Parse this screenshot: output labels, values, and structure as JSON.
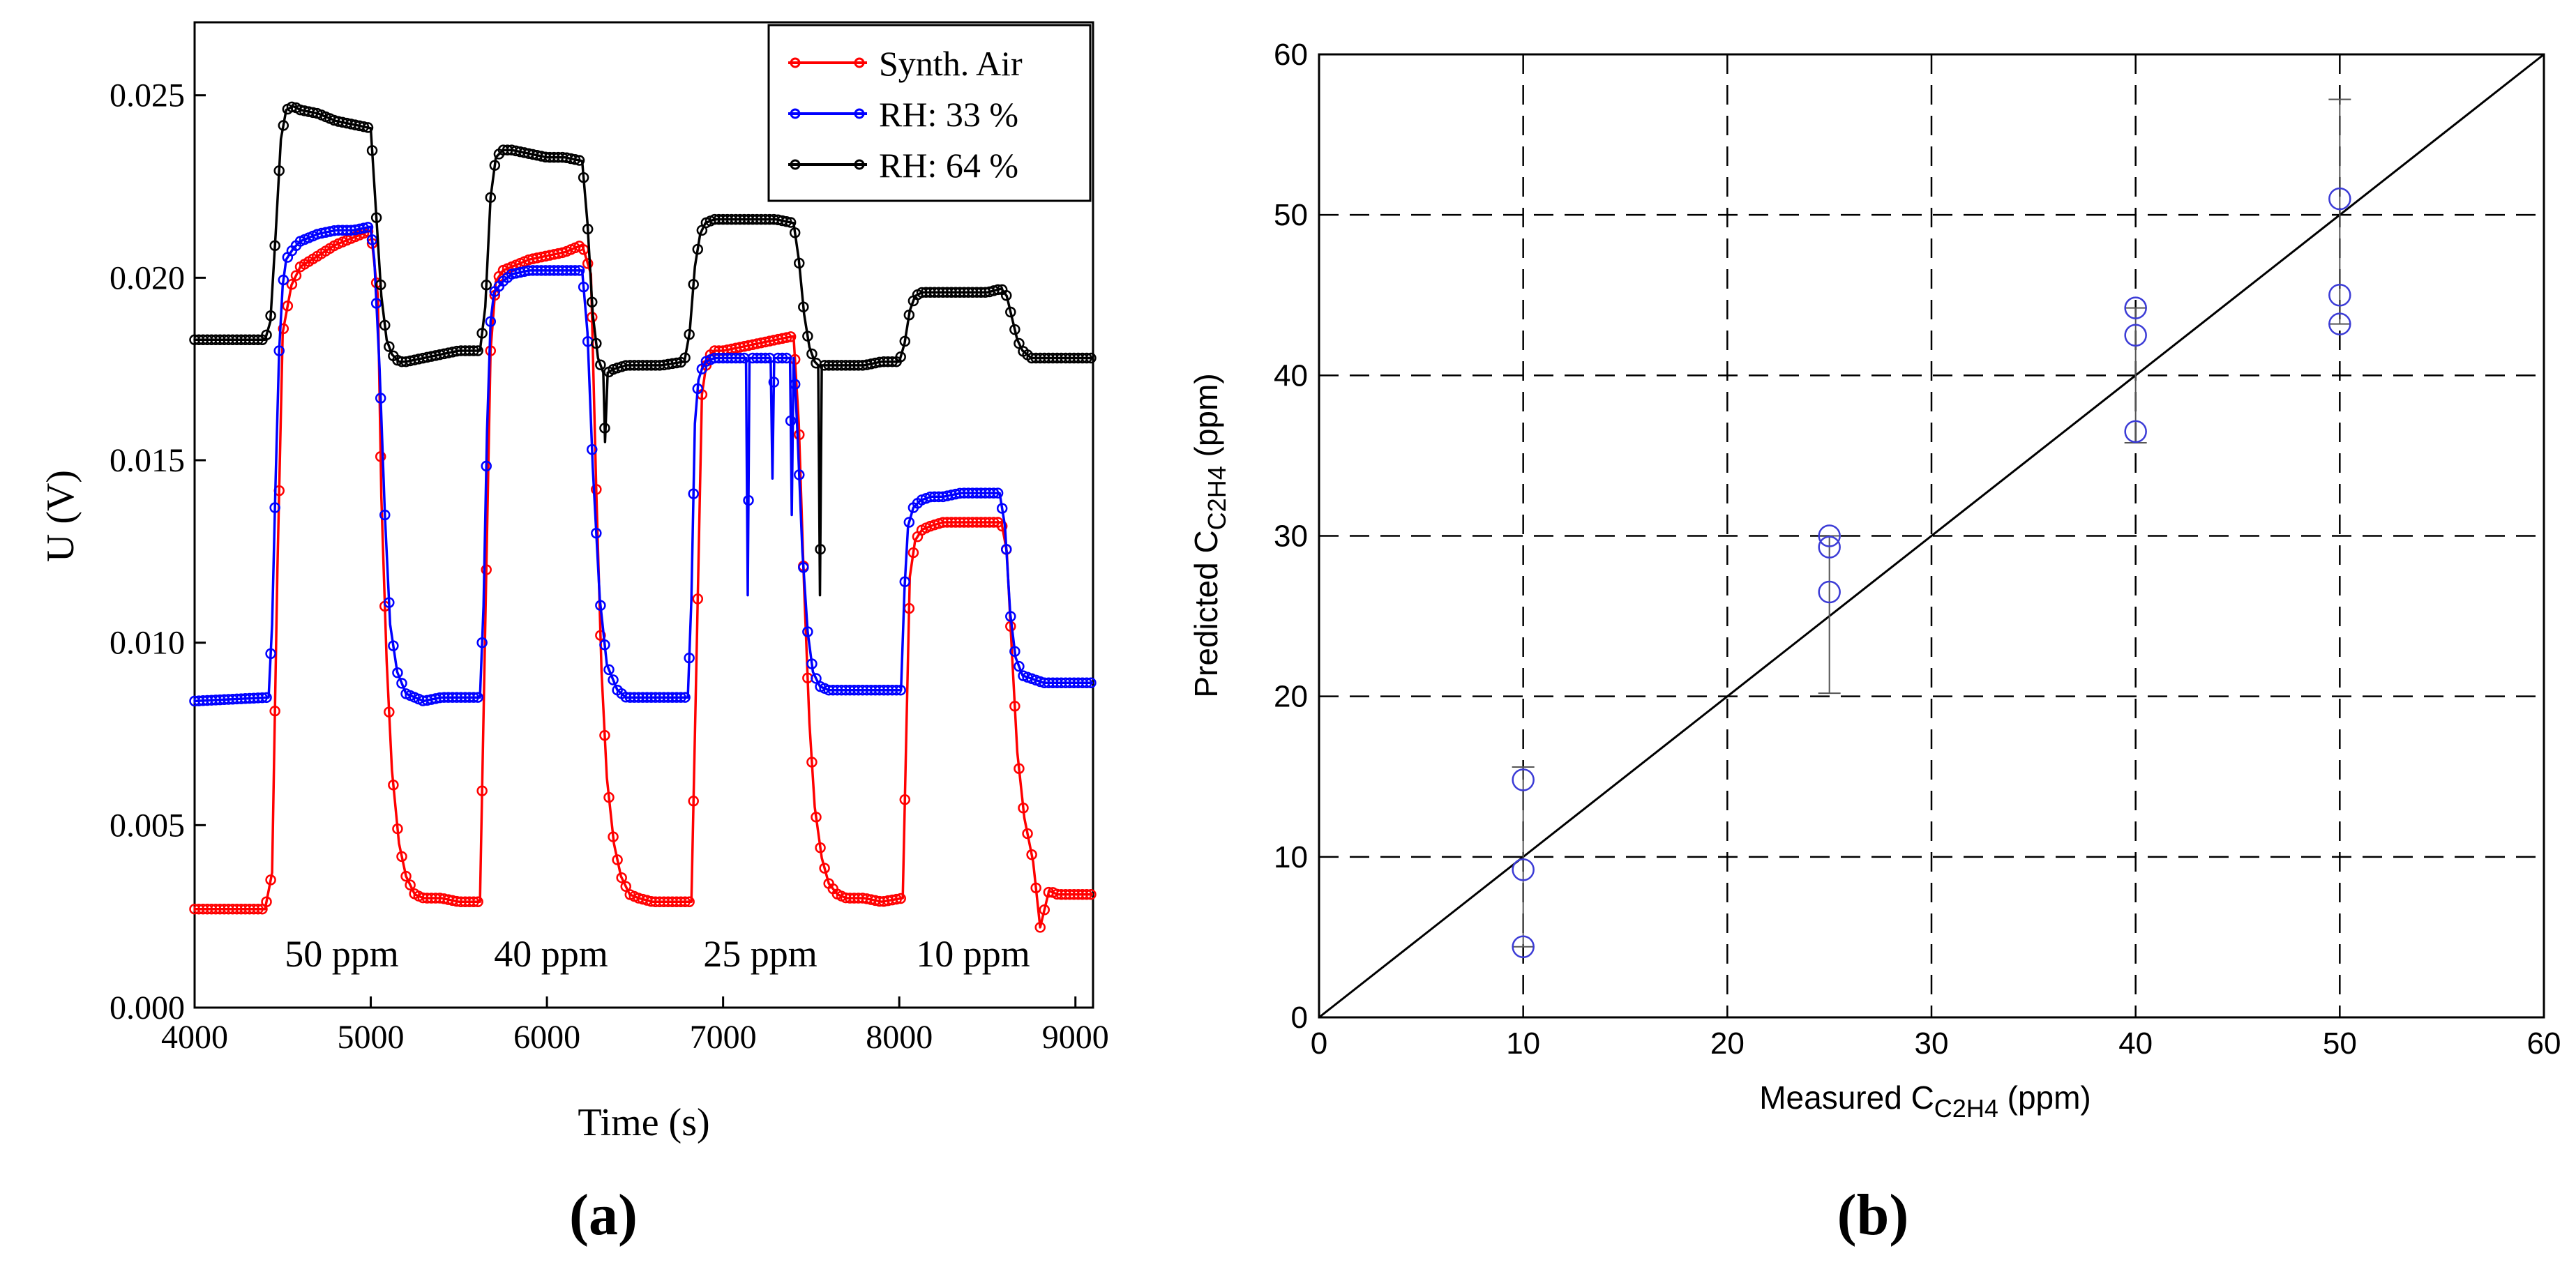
{
  "figure": {
    "panel_a_label": "(a)",
    "panel_b_label": "(b)"
  },
  "colors": {
    "synth_air": "#ff0000",
    "rh33": "#0000ff",
    "rh64": "#000000",
    "scatter": "#3b3bd6",
    "grid": "#000000",
    "axis": "#000000"
  },
  "chart_data": [
    {
      "type": "line",
      "title": "",
      "xlabel": "Time (s)",
      "ylabel": "U (V)",
      "xlim": [
        4000,
        9100
      ],
      "ylim": [
        0.0,
        0.027
      ],
      "xticks": [
        4000,
        5000,
        6000,
        7000,
        8000,
        9000
      ],
      "xtick_labels": [
        "4000",
        "5000",
        "6000",
        "7000",
        "8000",
        "9000"
      ],
      "yticks": [
        0.0,
        0.005,
        0.01,
        0.015,
        0.02,
        0.025
      ],
      "ytick_labels": [
        "0.000",
        "0.005",
        "0.010",
        "0.015",
        "0.020",
        "0.025"
      ],
      "legend_position": "top-right",
      "annotations": [
        {
          "text": "50 ppm",
          "x": 4750,
          "y": 0.00135
        },
        {
          "text": "40 ppm",
          "x": 5750,
          "y": 0.00135
        },
        {
          "text": "25 ppm",
          "x": 6880,
          "y": 0.00135
        },
        {
          "text": "10 ppm",
          "x": 7950,
          "y": 0.00135
        }
      ],
      "series": [
        {
          "name": "Synth. Air",
          "color_key": "synth_air",
          "x": [
            4000,
            4400,
            4440,
            4470,
            4500,
            4550,
            4600,
            4700,
            4800,
            4900,
            5000,
            5040,
            5060,
            5090,
            5120,
            5160,
            5200,
            5250,
            5300,
            5400,
            5500,
            5620,
            5650,
            5680,
            5710,
            5750,
            5800,
            5900,
            6000,
            6100,
            6200,
            6250,
            6280,
            6310,
            6340,
            6380,
            6420,
            6470,
            6520,
            6600,
            6700,
            6820,
            6850,
            6880,
            6910,
            6950,
            7000,
            7100,
            7200,
            7300,
            7400,
            7430,
            7460,
            7490,
            7520,
            7560,
            7600,
            7650,
            7700,
            7800,
            7900,
            8020,
            8040,
            8060,
            8090,
            8130,
            8180,
            8250,
            8350,
            8450,
            8580,
            8610,
            8640,
            8670,
            8710,
            8760,
            8800,
            8850,
            8900,
            9000,
            9100
          ],
          "values": [
            0.0027,
            0.0027,
            0.0037,
            0.012,
            0.0185,
            0.0198,
            0.0203,
            0.0206,
            0.0209,
            0.0211,
            0.0213,
            0.0195,
            0.014,
            0.0095,
            0.0065,
            0.0045,
            0.0036,
            0.0031,
            0.003,
            0.003,
            0.0029,
            0.0029,
            0.0105,
            0.018,
            0.0199,
            0.0202,
            0.0203,
            0.0205,
            0.0206,
            0.0207,
            0.0209,
            0.0201,
            0.0142,
            0.0092,
            0.0063,
            0.0045,
            0.0036,
            0.0031,
            0.003,
            0.0029,
            0.0029,
            0.0029,
            0.0098,
            0.0168,
            0.0178,
            0.018,
            0.018,
            0.0181,
            0.0182,
            0.0183,
            0.0184,
            0.016,
            0.0115,
            0.0078,
            0.0055,
            0.0041,
            0.0034,
            0.0031,
            0.003,
            0.003,
            0.0029,
            0.003,
            0.0075,
            0.0118,
            0.0128,
            0.0131,
            0.0132,
            0.0133,
            0.0133,
            0.0133,
            0.0133,
            0.0125,
            0.0097,
            0.007,
            0.0052,
            0.004,
            0.0022,
            0.0032,
            0.0031,
            0.0031,
            0.0031
          ]
        },
        {
          "name": "RH: 33 %",
          "color_key": "rh33",
          "x": [
            4000,
            4420,
            4440,
            4460,
            4480,
            4500,
            4520,
            4560,
            4600,
            4700,
            4800,
            4900,
            5000,
            5020,
            5050,
            5080,
            5110,
            5150,
            5200,
            5300,
            5400,
            5500,
            5620,
            5640,
            5660,
            5680,
            5700,
            5750,
            5800,
            5900,
            6000,
            6100,
            6200,
            6230,
            6260,
            6300,
            6340,
            6400,
            6450,
            6500,
            6600,
            6700,
            6800,
            6820,
            6840,
            6860,
            6880,
            6900,
            6950,
            7000,
            7100,
            7130,
            7140,
            7150,
            7200,
            7270,
            7280,
            7290,
            7320,
            7380,
            7390,
            7400,
            7420,
            7450,
            7480,
            7510,
            7550,
            7600,
            7700,
            7800,
            7900,
            8010,
            8030,
            8050,
            8080,
            8120,
            8180,
            8250,
            8350,
            8450,
            8570,
            8600,
            8630,
            8660,
            8700,
            8760,
            8820,
            8900,
            9000,
            9100
          ],
          "values": [
            0.0084,
            0.0085,
            0.0105,
            0.0145,
            0.018,
            0.0198,
            0.0205,
            0.0208,
            0.021,
            0.0212,
            0.0213,
            0.0213,
            0.0214,
            0.0205,
            0.0175,
            0.0135,
            0.0105,
            0.0092,
            0.0086,
            0.0084,
            0.0085,
            0.0085,
            0.0085,
            0.011,
            0.0158,
            0.0188,
            0.0196,
            0.0199,
            0.0201,
            0.0202,
            0.0202,
            0.0202,
            0.0202,
            0.0185,
            0.0148,
            0.0112,
            0.0094,
            0.0087,
            0.0085,
            0.0085,
            0.0085,
            0.0085,
            0.0085,
            0.0112,
            0.016,
            0.0172,
            0.0175,
            0.0177,
            0.0178,
            0.0178,
            0.0178,
            0.0178,
            0.0113,
            0.0178,
            0.0178,
            0.0178,
            0.0145,
            0.0178,
            0.0178,
            0.0178,
            0.0135,
            0.0178,
            0.016,
            0.0125,
            0.0103,
            0.0092,
            0.0088,
            0.0087,
            0.0087,
            0.0087,
            0.0087,
            0.0087,
            0.0115,
            0.0132,
            0.0137,
            0.0139,
            0.014,
            0.014,
            0.0141,
            0.0141,
            0.0141,
            0.0132,
            0.0108,
            0.0096,
            0.0091,
            0.009,
            0.0089,
            0.0089,
            0.0089,
            0.0089
          ]
        },
        {
          "name": "RH: 64 %",
          "color_key": "rh64",
          "x": [
            4000,
            4400,
            4430,
            4460,
            4490,
            4520,
            4560,
            4600,
            4700,
            4800,
            4900,
            5000,
            5030,
            5060,
            5090,
            5120,
            5160,
            5200,
            5300,
            5400,
            5500,
            5620,
            5650,
            5680,
            5710,
            5750,
            5800,
            5900,
            6000,
            6100,
            6200,
            6230,
            6260,
            6290,
            6320,
            6330,
            6345,
            6380,
            6450,
            6550,
            6650,
            6780,
            6810,
            6840,
            6870,
            6900,
            6950,
            7000,
            7100,
            7200,
            7300,
            7400,
            7430,
            7460,
            7490,
            7520,
            7540,
            7550,
            7560,
            7600,
            7700,
            7800,
            7900,
            8000,
            8030,
            8060,
            8090,
            8130,
            8200,
            8300,
            8400,
            8500,
            8580,
            8610,
            8640,
            8670,
            8700,
            8750,
            8800,
            8900,
            9000,
            9100
          ],
          "values": [
            0.0183,
            0.0183,
            0.0188,
            0.0212,
            0.0238,
            0.0246,
            0.0247,
            0.0246,
            0.0245,
            0.0243,
            0.0242,
            0.0241,
            0.0218,
            0.0195,
            0.0183,
            0.0179,
            0.0177,
            0.0177,
            0.0178,
            0.0179,
            0.018,
            0.018,
            0.0192,
            0.0222,
            0.0233,
            0.0235,
            0.0235,
            0.0234,
            0.0233,
            0.0233,
            0.0232,
            0.0215,
            0.019,
            0.0178,
            0.0174,
            0.0155,
            0.0174,
            0.0175,
            0.0176,
            0.0176,
            0.0176,
            0.0177,
            0.0185,
            0.0203,
            0.0212,
            0.0215,
            0.0216,
            0.0216,
            0.0216,
            0.0216,
            0.0216,
            0.0215,
            0.0205,
            0.019,
            0.0181,
            0.0177,
            0.0176,
            0.0113,
            0.0176,
            0.0176,
            0.0176,
            0.0176,
            0.0177,
            0.0177,
            0.0182,
            0.0191,
            0.0195,
            0.0196,
            0.0196,
            0.0196,
            0.0196,
            0.0196,
            0.0197,
            0.0195,
            0.0189,
            0.0183,
            0.018,
            0.0178,
            0.0178,
            0.0178,
            0.0178,
            0.0178
          ]
        }
      ]
    },
    {
      "type": "scatter",
      "title": "",
      "xlabel_main": "Measured C",
      "xlabel_sub": "C2H4",
      "xlabel_suffix": " (ppm)",
      "ylabel_main": "Predicted C",
      "ylabel_sub": "C2H4",
      "ylabel_suffix": " (ppm)",
      "xlim": [
        0,
        60
      ],
      "ylim": [
        0,
        60
      ],
      "xticks": [
        0,
        10,
        20,
        30,
        40,
        50,
        60
      ],
      "xtick_labels": [
        "0",
        "10",
        "20",
        "30",
        "40",
        "50",
        "60"
      ],
      "yticks": [
        0,
        10,
        20,
        30,
        40,
        50,
        60
      ],
      "ytick_labels": [
        "0",
        "10",
        "20",
        "30",
        "40",
        "50",
        "60"
      ],
      "grid": true,
      "reference_line": {
        "x": [
          0,
          60
        ],
        "y": [
          0,
          60
        ]
      },
      "points": [
        {
          "x": 10,
          "y": 14.8
        },
        {
          "x": 10,
          "y": 9.2
        },
        {
          "x": 10,
          "y": 4.4
        },
        {
          "x": 25,
          "y": 30.0
        },
        {
          "x": 25,
          "y": 29.3
        },
        {
          "x": 25,
          "y": 26.5
        },
        {
          "x": 40,
          "y": 44.2
        },
        {
          "x": 40,
          "y": 42.5
        },
        {
          "x": 40,
          "y": 36.5
        },
        {
          "x": 50,
          "y": 51.0
        },
        {
          "x": 50,
          "y": 45.0
        },
        {
          "x": 50,
          "y": 43.2
        }
      ],
      "error_bars": [
        {
          "x": 10,
          "low": 4.4,
          "high": 15.6
        },
        {
          "x": 25,
          "low": 20.2,
          "high": 30.0
        },
        {
          "x": 40,
          "low": 35.8,
          "high": 44.2
        },
        {
          "x": 50,
          "low": 43.2,
          "high": 57.2
        }
      ]
    }
  ]
}
